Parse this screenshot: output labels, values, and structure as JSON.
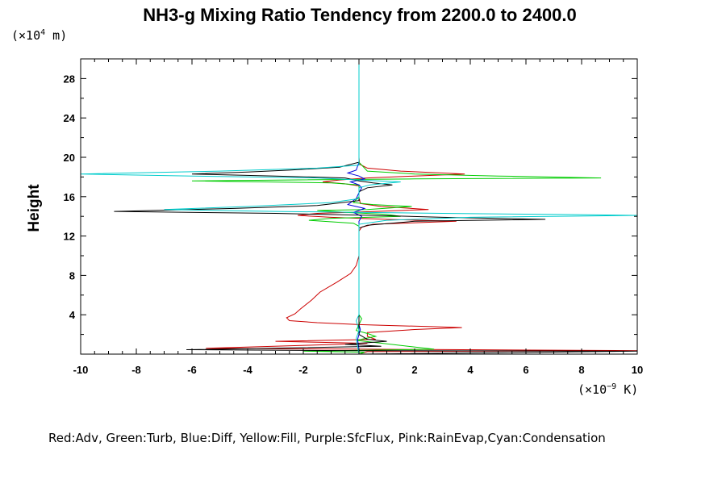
{
  "chart_data": {
    "type": "line",
    "title": "NH3-g Mixing Ratio Tendency from 2200.0 to 2400.0",
    "ylabel": "Height",
    "xlabel": "",
    "y_unit_base": "(×10",
    "y_unit_exp": "4",
    "y_unit_tail": " m)",
    "x_unit_base": "(×10",
    "x_unit_exp": "−9",
    "x_unit_tail": " K)",
    "legend_text": "Red:Adv, Green:Turb, Blue:Diff, Yellow:Fill, Purple:SfcFlux, Pink:RainEvap,Cyan:Condensation",
    "xlim": [
      -10,
      10
    ],
    "ylim": [
      0,
      30
    ],
    "x_ticks": [
      "-10",
      "-8",
      "-6",
      "-4",
      "-2",
      "0",
      "2",
      "4",
      "6",
      "8",
      "10"
    ],
    "y_ticks": [
      "4",
      "8",
      "12",
      "16",
      "20",
      "24",
      "28"
    ],
    "series": [
      {
        "name": "Red:Adv",
        "color": "#cc0000",
        "points": [
          [
            0,
            30
          ],
          [
            0,
            20
          ],
          [
            0.02,
            19.3
          ],
          [
            0.3,
            18.9
          ],
          [
            1.5,
            18.6
          ],
          [
            3.8,
            18.3
          ],
          [
            2.0,
            18.1
          ],
          [
            0.3,
            17.9
          ],
          [
            -0.7,
            17.7
          ],
          [
            -1.3,
            17.5
          ],
          [
            -0.5,
            17.3
          ],
          [
            0,
            17.1
          ],
          [
            0,
            16
          ],
          [
            0.05,
            15.3
          ],
          [
            0.8,
            15.0
          ],
          [
            2.5,
            14.7
          ],
          [
            0.6,
            14.5
          ],
          [
            -1.5,
            14.3
          ],
          [
            -2.2,
            14.1
          ],
          [
            -1.0,
            13.9
          ],
          [
            1.0,
            13.7
          ],
          [
            3.5,
            13.5
          ],
          [
            0.5,
            13.2
          ],
          [
            0.1,
            12.9
          ],
          [
            0,
            12.5
          ],
          [
            0,
            10
          ],
          [
            -0.1,
            9.0
          ],
          [
            -0.3,
            8.2
          ],
          [
            -0.8,
            7.3
          ],
          [
            -1.4,
            6.3
          ],
          [
            -1.7,
            5.5
          ],
          [
            -2.1,
            4.6
          ],
          [
            -2.3,
            4.1
          ],
          [
            -2.6,
            3.7
          ],
          [
            -2.5,
            3.4
          ],
          [
            -1.5,
            3.2
          ],
          [
            0,
            3.0
          ],
          [
            1.2,
            2.9
          ],
          [
            2.5,
            2.8
          ],
          [
            3.7,
            2.7
          ],
          [
            2.0,
            2.5
          ],
          [
            0.3,
            2.2
          ],
          [
            0.3,
            1.8
          ],
          [
            0.6,
            1.5
          ],
          [
            -3.0,
            1.3
          ],
          [
            0.3,
            1.1
          ],
          [
            -1.8,
            0.9
          ],
          [
            -5.5,
            0.6
          ],
          [
            0.3,
            0.5
          ],
          [
            10,
            0.35
          ],
          [
            0.3,
            0.25
          ],
          [
            0,
            0
          ]
        ]
      },
      {
        "name": "Green:Turb",
        "color": "#00cc00",
        "points": [
          [
            0,
            30
          ],
          [
            0,
            19.5
          ],
          [
            0.3,
            18.6
          ],
          [
            2.0,
            18.3
          ],
          [
            5.0,
            18.1
          ],
          [
            8.7,
            17.9
          ],
          [
            2.0,
            17.8
          ],
          [
            -2.5,
            17.7
          ],
          [
            -6.0,
            17.6
          ],
          [
            -1.0,
            17.4
          ],
          [
            0,
            17.2
          ],
          [
            0,
            16
          ],
          [
            -0.2,
            15.4
          ],
          [
            0.5,
            15.2
          ],
          [
            1.9,
            15.0
          ],
          [
            0.3,
            14.7
          ],
          [
            -1.5,
            14.6
          ],
          [
            -0.5,
            14.4
          ],
          [
            1.0,
            14.2
          ],
          [
            1.5,
            14.0
          ],
          [
            -1.0,
            13.8
          ],
          [
            -1.8,
            13.6
          ],
          [
            -0.2,
            13.3
          ],
          [
            0,
            13.0
          ],
          [
            0,
            4.0
          ],
          [
            0.1,
            3.6
          ],
          [
            0,
            3.0
          ],
          [
            -0.1,
            2.4
          ],
          [
            0.3,
            2.1
          ],
          [
            0.6,
            1.8
          ],
          [
            -0.1,
            1.4
          ],
          [
            2.7,
            0.5
          ],
          [
            -2.0,
            0.3
          ],
          [
            0.2,
            0.2
          ],
          [
            0,
            0
          ]
        ]
      },
      {
        "name": "Blue:Diff",
        "color": "#0000dd",
        "points": [
          [
            0,
            30
          ],
          [
            0,
            19.5
          ],
          [
            -0.1,
            18.7
          ],
          [
            -0.4,
            18.4
          ],
          [
            0,
            18.1
          ],
          [
            0.2,
            17.8
          ],
          [
            -0.3,
            17.5
          ],
          [
            0,
            17.2
          ],
          [
            0.1,
            16.9
          ],
          [
            0,
            16.4
          ],
          [
            -0.1,
            15.8
          ],
          [
            -0.4,
            15.2
          ],
          [
            0.2,
            14.8
          ],
          [
            -0.2,
            14.4
          ],
          [
            0.1,
            14.0
          ],
          [
            0,
            13.5
          ],
          [
            0,
            3.0
          ],
          [
            0.05,
            2.5
          ],
          [
            -0.05,
            1.5
          ],
          [
            0,
            0.5
          ],
          [
            0,
            0
          ]
        ]
      },
      {
        "name": "Black",
        "color": "#000000",
        "points": [
          [
            0,
            30
          ],
          [
            0,
            19.5
          ],
          [
            -0.7,
            19.0
          ],
          [
            -2.5,
            18.7
          ],
          [
            -4.0,
            18.5
          ],
          [
            -6.0,
            18.3
          ],
          [
            -3.0,
            18.1
          ],
          [
            -0.5,
            17.9
          ],
          [
            0,
            17.6
          ],
          [
            0.5,
            17.4
          ],
          [
            1.2,
            17.2
          ],
          [
            0.3,
            16.9
          ],
          [
            0,
            16.5
          ],
          [
            0,
            15.6
          ],
          [
            -1.5,
            15.1
          ],
          [
            -4.5,
            14.8
          ],
          [
            -8.8,
            14.5
          ],
          [
            -3.0,
            14.3
          ],
          [
            0.5,
            14.1
          ],
          [
            3.0,
            13.9
          ],
          [
            6.7,
            13.7
          ],
          [
            2.0,
            13.5
          ],
          [
            0.3,
            13.1
          ],
          [
            0,
            12.8
          ],
          [
            0,
            2.0
          ],
          [
            0.3,
            1.5
          ],
          [
            1.0,
            1.3
          ],
          [
            -0.5,
            1.0
          ],
          [
            0.8,
            0.8
          ],
          [
            -6.2,
            0.45
          ],
          [
            0,
            0.35
          ],
          [
            10,
            0.3
          ],
          [
            0,
            0
          ]
        ]
      },
      {
        "name": "Cyan:Condensation",
        "color": "#00cccc",
        "points": [
          [
            0,
            30
          ],
          [
            0,
            19.2
          ],
          [
            -1.5,
            18.9
          ],
          [
            -5.0,
            18.6
          ],
          [
            -10,
            18.3
          ],
          [
            -6.0,
            18.1
          ],
          [
            -1.5,
            17.9
          ],
          [
            0,
            17.7
          ],
          [
            1.5,
            17.5
          ],
          [
            0.4,
            17.2
          ],
          [
            0,
            16.9
          ],
          [
            0,
            15.8
          ],
          [
            -1.0,
            15.4
          ],
          [
            -4.0,
            15.0
          ],
          [
            -7.0,
            14.7
          ],
          [
            -3.0,
            14.5
          ],
          [
            0,
            14.4
          ],
          [
            3.0,
            14.3
          ],
          [
            7.0,
            14.2
          ],
          [
            10,
            14.1
          ],
          [
            4.0,
            13.9
          ],
          [
            1.0,
            13.6
          ],
          [
            0,
            13.2
          ],
          [
            0,
            4.0
          ],
          [
            -0.1,
            3.4
          ],
          [
            0,
            2.4
          ],
          [
            -0.1,
            1.6
          ],
          [
            -0.05,
            0.8
          ],
          [
            0,
            0
          ]
        ]
      }
    ]
  }
}
